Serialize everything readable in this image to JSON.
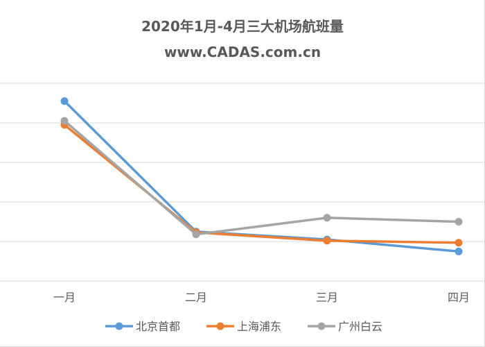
{
  "chart_data": {
    "type": "line",
    "title": "2020年1月-4月三大机场航班量",
    "subtitle": "www.CADAS.com.cn",
    "categories": [
      "一月",
      "二月",
      "三月",
      "四月"
    ],
    "ylim": [
      0,
      500
    ],
    "grid": true,
    "legend_position": "bottom",
    "series": [
      {
        "name": "北京首都",
        "color": "#5b9bd5",
        "values": [
          455,
          125,
          105,
          75
        ]
      },
      {
        "name": "上海浦东",
        "color": "#ed7d31",
        "values": [
          395,
          123,
          102,
          97
        ]
      },
      {
        "name": "广州白云",
        "color": "#a5a5a5",
        "values": [
          405,
          118,
          160,
          150
        ]
      }
    ]
  }
}
